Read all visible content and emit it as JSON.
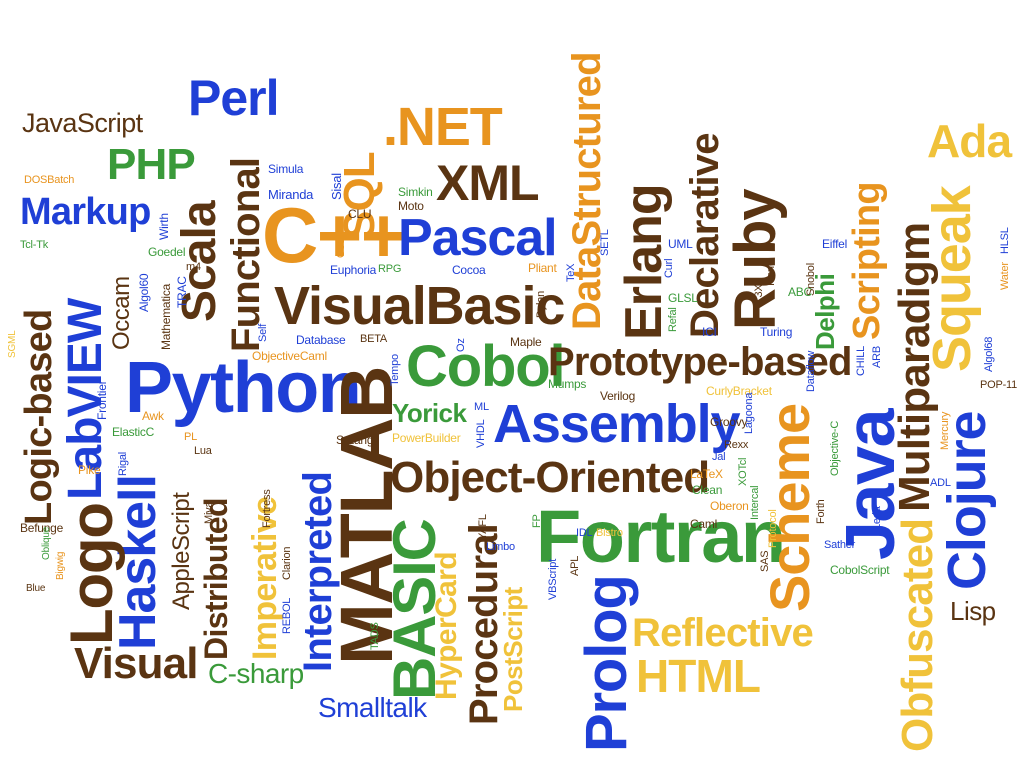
{
  "palette": {
    "blue": "#1f3fd6",
    "green": "#3a9a3a",
    "brown": "#5a3412",
    "orange": "#e8941f",
    "yellow": "#f0c23a"
  },
  "words": [
    {
      "text": "JavaScript",
      "color": "brown"
    },
    {
      "text": "Perl",
      "color": "blue"
    },
    {
      "text": "PHP",
      "color": "green"
    },
    {
      "text": "Markup",
      "color": "blue"
    },
    {
      "text": "DOSBatch",
      "color": "orange"
    },
    {
      "text": "Tcl-Tk",
      "color": "green"
    },
    {
      "text": "LabVIEW",
      "color": "blue"
    },
    {
      "text": "Logic-based",
      "color": "brown"
    },
    {
      "text": "Python",
      "color": "blue"
    },
    {
      "text": "Haskell",
      "color": "blue"
    },
    {
      "text": "Logo",
      "color": "brown"
    },
    {
      "text": "Visual",
      "color": "brown"
    },
    {
      "text": "Scala",
      "color": "brown"
    },
    {
      "text": "Functional",
      "color": "brown"
    },
    {
      "text": "C++",
      "color": "orange"
    },
    {
      "text": "SQL",
      "color": "orange"
    },
    {
      "text": ".NET",
      "color": "orange"
    },
    {
      "text": "XML",
      "color": "brown"
    },
    {
      "text": "Pascal",
      "color": "blue"
    },
    {
      "text": "VisualBasic",
      "color": "brown"
    },
    {
      "text": "MATLAB",
      "color": "brown"
    },
    {
      "text": "BASIC",
      "color": "green"
    },
    {
      "text": "Cobol",
      "color": "green"
    },
    {
      "text": "Prototype-based",
      "color": "brown"
    },
    {
      "text": "Assembly",
      "color": "blue"
    },
    {
      "text": "Object-Oriented",
      "color": "brown"
    },
    {
      "text": "Fortran",
      "color": "green"
    },
    {
      "text": "Prolog",
      "color": "blue"
    },
    {
      "text": "DataStructured",
      "color": "orange"
    },
    {
      "text": "Erlang",
      "color": "brown"
    },
    {
      "text": "Declarative",
      "color": "brown"
    },
    {
      "text": "Ruby",
      "color": "brown"
    },
    {
      "text": "Scheme",
      "color": "orange"
    },
    {
      "text": "Java",
      "color": "blue"
    },
    {
      "text": "Multiparadigm",
      "color": "brown"
    },
    {
      "text": "Scripting",
      "color": "orange"
    },
    {
      "text": "Squeak",
      "color": "yellow"
    },
    {
      "text": "Ada",
      "color": "yellow"
    },
    {
      "text": "Clojure",
      "color": "blue"
    },
    {
      "text": "Obfuscated",
      "color": "yellow"
    },
    {
      "text": "Lisp",
      "color": "brown"
    },
    {
      "text": "Reflective",
      "color": "yellow"
    },
    {
      "text": "HTML",
      "color": "yellow"
    },
    {
      "text": "Imperative",
      "color": "yellow"
    },
    {
      "text": "Interpreted",
      "color": "blue"
    },
    {
      "text": "Distributed",
      "color": "brown"
    },
    {
      "text": "AppleScript",
      "color": "brown"
    },
    {
      "text": "C-sharp",
      "color": "green"
    },
    {
      "text": "Smalltalk",
      "color": "blue"
    },
    {
      "text": "Procedural",
      "color": "brown"
    },
    {
      "text": "HyperCard",
      "color": "yellow"
    },
    {
      "text": "PostScript",
      "color": "yellow"
    },
    {
      "text": "Yorick",
      "color": "green"
    },
    {
      "text": "Occam",
      "color": "brown"
    },
    {
      "text": "Delphi",
      "color": "green"
    },
    {
      "text": "Simula",
      "color": "blue"
    },
    {
      "text": "Miranda",
      "color": "blue"
    },
    {
      "text": "Sisal",
      "color": "blue"
    },
    {
      "text": "CLU",
      "color": "brown"
    },
    {
      "text": "Simkin",
      "color": "green"
    },
    {
      "text": "Moto",
      "color": "brown"
    },
    {
      "text": "Wirth",
      "color": "blue"
    },
    {
      "text": "Goedel",
      "color": "green"
    },
    {
      "text": "Algol60",
      "color": "blue"
    },
    {
      "text": "Mathematica",
      "color": "brown"
    },
    {
      "text": "TRAC",
      "color": "blue"
    },
    {
      "text": "m4",
      "color": "brown"
    },
    {
      "text": "Cecil",
      "color": "orange"
    },
    {
      "text": "Euphoria",
      "color": "blue"
    },
    {
      "text": "RPG",
      "color": "green"
    },
    {
      "text": "Cocoa",
      "color": "blue"
    },
    {
      "text": "Pliant",
      "color": "orange"
    },
    {
      "text": "TeX",
      "color": "blue"
    },
    {
      "text": "Dylan",
      "color": "brown"
    },
    {
      "text": "Maple",
      "color": "brown"
    },
    {
      "text": "Oz",
      "color": "blue"
    },
    {
      "text": "Tempo",
      "color": "blue"
    },
    {
      "text": "BETA",
      "color": "brown"
    },
    {
      "text": "Database",
      "color": "blue"
    },
    {
      "text": "Self",
      "color": "blue"
    },
    {
      "text": "ObjectiveCaml",
      "color": "orange"
    },
    {
      "text": "SETL",
      "color": "blue"
    },
    {
      "text": "Curl",
      "color": "blue"
    },
    {
      "text": "UML",
      "color": "blue"
    },
    {
      "text": "Refal",
      "color": "green"
    },
    {
      "text": "GLSL",
      "color": "green"
    },
    {
      "text": "ICI",
      "color": "blue"
    },
    {
      "text": "T3X",
      "color": "brown"
    },
    {
      "text": "Icon",
      "color": "brown"
    },
    {
      "text": "ABC",
      "color": "green"
    },
    {
      "text": "Snobol",
      "color": "brown"
    },
    {
      "text": "Turing",
      "color": "blue"
    },
    {
      "text": "Eiffel",
      "color": "blue"
    },
    {
      "text": "Water",
      "color": "orange"
    },
    {
      "text": "HLSL",
      "color": "blue"
    },
    {
      "text": "Algol68",
      "color": "blue"
    },
    {
      "text": "POP-11",
      "color": "brown"
    },
    {
      "text": "Dataflow",
      "color": "blue"
    },
    {
      "text": "ARB",
      "color": "blue"
    },
    {
      "text": "CHILL",
      "color": "blue"
    },
    {
      "text": "Mercury",
      "color": "orange"
    },
    {
      "text": "ADL",
      "color": "blue"
    },
    {
      "text": "Frontier",
      "color": "blue"
    },
    {
      "text": "ElasticC",
      "color": "green"
    },
    {
      "text": "Awk",
      "color": "orange"
    },
    {
      "text": "PL",
      "color": "orange"
    },
    {
      "text": "Lua",
      "color": "brown"
    },
    {
      "text": "Pike",
      "color": "orange"
    },
    {
      "text": "Rigal",
      "color": "blue"
    },
    {
      "text": "Miva",
      "color": "brown"
    },
    {
      "text": "Befunge",
      "color": "brown"
    },
    {
      "text": "Oblique",
      "color": "green"
    },
    {
      "text": "Bigwig",
      "color": "orange"
    },
    {
      "text": "Blue",
      "color": "brown"
    },
    {
      "text": "SGML",
      "color": "yellow"
    },
    {
      "text": "S-Lang",
      "color": "brown"
    },
    {
      "text": "PowerBuilder",
      "color": "yellow"
    },
    {
      "text": "ML",
      "color": "blue"
    },
    {
      "text": "VHDL",
      "color": "blue"
    },
    {
      "text": "Mumps",
      "color": "green"
    },
    {
      "text": "Verilog",
      "color": "brown"
    },
    {
      "text": "Fortress",
      "color": "brown"
    },
    {
      "text": "Clarion",
      "color": "brown"
    },
    {
      "text": "REBOL",
      "color": "blue"
    },
    {
      "text": "TADS",
      "color": "green"
    },
    {
      "text": "YAFL",
      "color": "brown"
    },
    {
      "text": "Limbo",
      "color": "blue"
    },
    {
      "text": "FP",
      "color": "green"
    },
    {
      "text": "IDL",
      "color": "blue"
    },
    {
      "text": "Bistro",
      "color": "yellow"
    },
    {
      "text": "VBScript",
      "color": "blue"
    },
    {
      "text": "APL",
      "color": "brown"
    },
    {
      "text": "CurlyBracket",
      "color": "yellow"
    },
    {
      "text": "Groovy",
      "color": "brown"
    },
    {
      "text": "Rexx",
      "color": "brown"
    },
    {
      "text": "XOTcl",
      "color": "green"
    },
    {
      "text": "Lagoona",
      "color": "blue"
    },
    {
      "text": "Jal",
      "color": "blue"
    },
    {
      "text": "LaTeX",
      "color": "orange"
    },
    {
      "text": "Clean",
      "color": "green"
    },
    {
      "text": "Intercal",
      "color": "green"
    },
    {
      "text": "Oberon",
      "color": "orange"
    },
    {
      "text": "Caml",
      "color": "brown"
    },
    {
      "text": "Protocol",
      "color": "yellow"
    },
    {
      "text": "SAS",
      "color": "brown"
    },
    {
      "text": "Forth",
      "color": "brown"
    },
    {
      "text": "Objective-C",
      "color": "green"
    },
    {
      "text": "Leda",
      "color": "blue"
    },
    {
      "text": "Sather",
      "color": "blue"
    },
    {
      "text": "CobolScript",
      "color": "green"
    }
  ]
}
